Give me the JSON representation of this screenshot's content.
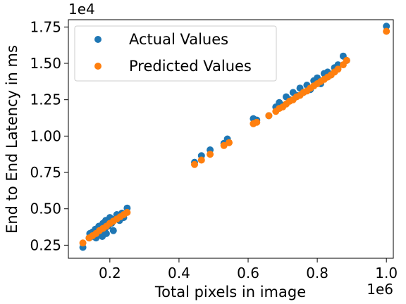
{
  "chart_data": {
    "type": "scatter",
    "xlabel": "Total pixels in image",
    "ylabel": "End to End Latency in ms",
    "x_offset_text": "1e6",
    "y_offset_text": "1e4",
    "xlim": [
      0.08,
      1.02
    ],
    "ylim": [
      0.16,
      1.8
    ],
    "x_ticks": [
      0.2,
      0.4,
      0.6,
      0.8,
      1.0
    ],
    "x_tick_labels": [
      "0.2",
      "0.4",
      "0.6",
      "0.8",
      "1.0"
    ],
    "y_ticks": [
      0.25,
      0.5,
      0.75,
      1.0,
      1.25,
      1.5,
      1.75
    ],
    "y_tick_labels": [
      "0.25",
      "0.50",
      "0.75",
      "1.00",
      "1.25",
      "1.50",
      "1.75"
    ],
    "grid": false,
    "legend_position": "top-left",
    "series": [
      {
        "name": "Actual Values",
        "color": "#1f77b4",
        "points": [
          [
            0.122,
            0.235
          ],
          [
            0.14,
            0.3
          ],
          [
            0.142,
            0.33
          ],
          [
            0.148,
            0.31
          ],
          [
            0.15,
            0.34
          ],
          [
            0.155,
            0.32
          ],
          [
            0.158,
            0.36
          ],
          [
            0.16,
            0.3
          ],
          [
            0.165,
            0.35
          ],
          [
            0.168,
            0.38
          ],
          [
            0.172,
            0.33
          ],
          [
            0.175,
            0.37
          ],
          [
            0.178,
            0.31
          ],
          [
            0.18,
            0.4
          ],
          [
            0.185,
            0.36
          ],
          [
            0.188,
            0.42
          ],
          [
            0.19,
            0.33
          ],
          [
            0.195,
            0.38
          ],
          [
            0.2,
            0.44
          ],
          [
            0.205,
            0.4
          ],
          [
            0.21,
            0.35
          ],
          [
            0.215,
            0.43
          ],
          [
            0.22,
            0.46
          ],
          [
            0.228,
            0.42
          ],
          [
            0.235,
            0.47
          ],
          [
            0.24,
            0.44
          ],
          [
            0.25,
            0.505
          ],
          [
            0.445,
            0.82
          ],
          [
            0.465,
            0.865
          ],
          [
            0.49,
            0.905
          ],
          [
            0.53,
            0.95
          ],
          [
            0.54,
            0.98
          ],
          [
            0.615,
            1.12
          ],
          [
            0.625,
            1.11
          ],
          [
            0.66,
            1.14
          ],
          [
            0.68,
            1.2
          ],
          [
            0.69,
            1.23
          ],
          [
            0.7,
            1.21
          ],
          [
            0.71,
            1.27
          ],
          [
            0.72,
            1.25
          ],
          [
            0.73,
            1.3
          ],
          [
            0.74,
            1.28
          ],
          [
            0.75,
            1.33
          ],
          [
            0.76,
            1.3
          ],
          [
            0.77,
            1.35
          ],
          [
            0.78,
            1.32
          ],
          [
            0.79,
            1.38
          ],
          [
            0.8,
            1.4
          ],
          [
            0.81,
            1.36
          ],
          [
            0.82,
            1.43
          ],
          [
            0.83,
            1.44
          ],
          [
            0.84,
            1.42
          ],
          [
            0.85,
            1.47
          ],
          [
            0.86,
            1.49
          ],
          [
            0.875,
            1.55
          ],
          [
            0.885,
            1.52
          ],
          [
            1.0,
            1.755
          ]
        ]
      },
      {
        "name": "Predicted Values",
        "color": "#ff7f0e",
        "points": [
          [
            0.122,
            0.265
          ],
          [
            0.14,
            0.3
          ],
          [
            0.15,
            0.315
          ],
          [
            0.16,
            0.33
          ],
          [
            0.17,
            0.35
          ],
          [
            0.18,
            0.365
          ],
          [
            0.19,
            0.38
          ],
          [
            0.2,
            0.4
          ],
          [
            0.21,
            0.415
          ],
          [
            0.22,
            0.43
          ],
          [
            0.23,
            0.445
          ],
          [
            0.24,
            0.46
          ],
          [
            0.25,
            0.475
          ],
          [
            0.445,
            0.805
          ],
          [
            0.465,
            0.835
          ],
          [
            0.49,
            0.875
          ],
          [
            0.53,
            0.935
          ],
          [
            0.545,
            0.955
          ],
          [
            0.615,
            1.085
          ],
          [
            0.625,
            1.095
          ],
          [
            0.66,
            1.14
          ],
          [
            0.68,
            1.17
          ],
          [
            0.69,
            1.19
          ],
          [
            0.7,
            1.2
          ],
          [
            0.71,
            1.22
          ],
          [
            0.72,
            1.24
          ],
          [
            0.73,
            1.25
          ],
          [
            0.74,
            1.27
          ],
          [
            0.75,
            1.28
          ],
          [
            0.76,
            1.3
          ],
          [
            0.77,
            1.31
          ],
          [
            0.78,
            1.33
          ],
          [
            0.79,
            1.345
          ],
          [
            0.8,
            1.36
          ],
          [
            0.81,
            1.375
          ],
          [
            0.82,
            1.39
          ],
          [
            0.83,
            1.405
          ],
          [
            0.84,
            1.42
          ],
          [
            0.85,
            1.44
          ],
          [
            0.86,
            1.46
          ],
          [
            0.875,
            1.49
          ],
          [
            0.885,
            1.52
          ],
          [
            1.0,
            1.72
          ]
        ]
      }
    ]
  }
}
